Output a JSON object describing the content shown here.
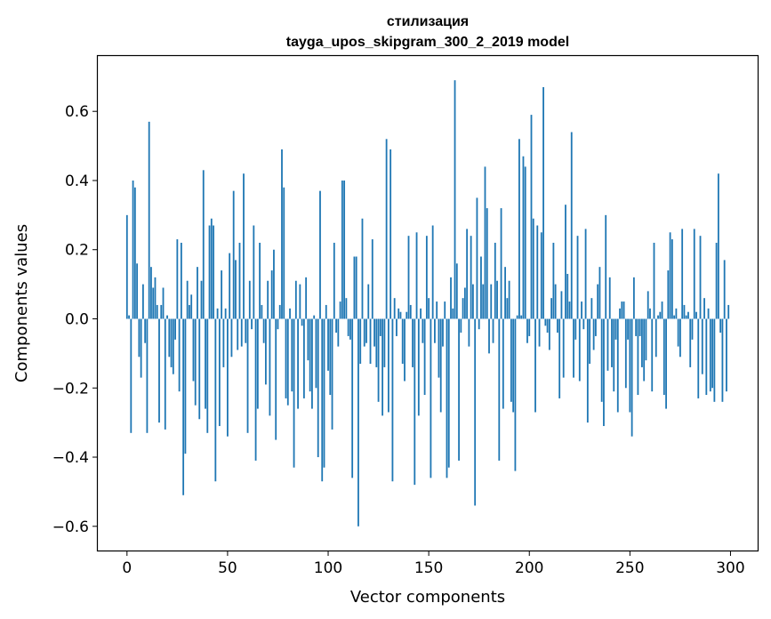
{
  "chart_data": {
    "type": "bar",
    "title_line1": "стилизация",
    "title_line2": "tayga_upos_skipgram_300_2_2019 model",
    "xlabel": "Vector components",
    "ylabel": "Components values",
    "xlim": [
      -14.5,
      313.5
    ],
    "ylim": [
      -0.67,
      0.76
    ],
    "xticks": [
      0,
      50,
      100,
      150,
      200,
      250,
      300
    ],
    "xtick_labels": [
      "0",
      "50",
      "100",
      "150",
      "200",
      "250",
      "300"
    ],
    "yticks": [
      -0.6,
      -0.4,
      -0.2,
      0.0,
      0.2,
      0.4,
      0.6
    ],
    "ytick_labels": [
      "−0.6",
      "−0.4",
      "−0.2",
      "0.0",
      "0.2",
      "0.4",
      "0.6"
    ],
    "bar_color": "#1f77b4",
    "values": [
      0.3,
      0.01,
      -0.33,
      0.4,
      0.38,
      0.16,
      -0.11,
      -0.17,
      0.1,
      -0.07,
      -0.33,
      0.57,
      0.15,
      0.09,
      0.12,
      0.04,
      -0.3,
      0.04,
      0.09,
      -0.32,
      0.01,
      -0.11,
      -0.14,
      -0.16,
      -0.06,
      0.23,
      -0.21,
      0.22,
      -0.51,
      -0.39,
      0.11,
      0.04,
      0.07,
      -0.18,
      -0.25,
      0.15,
      -0.29,
      0.11,
      0.43,
      -0.26,
      -0.33,
      0.27,
      0.29,
      0.27,
      -0.47,
      0.03,
      -0.31,
      0.14,
      -0.14,
      0.03,
      -0.34,
      0.19,
      -0.11,
      0.37,
      0.17,
      -0.09,
      0.22,
      -0.08,
      0.42,
      -0.07,
      -0.33,
      0.11,
      -0.03,
      0.27,
      -0.41,
      -0.26,
      0.22,
      0.04,
      -0.07,
      -0.19,
      0.11,
      -0.28,
      0.14,
      0.2,
      -0.35,
      -0.03,
      0.04,
      0.49,
      0.38,
      -0.23,
      -0.25,
      0.03,
      -0.21,
      -0.43,
      0.11,
      -0.26,
      0.1,
      -0.02,
      -0.23,
      0.12,
      -0.12,
      -0.21,
      -0.26,
      0.01,
      -0.2,
      -0.4,
      0.37,
      -0.47,
      -0.43,
      0.04,
      -0.15,
      -0.22,
      -0.32,
      0.22,
      -0.04,
      -0.08,
      0.05,
      0.4,
      0.4,
      0.06,
      -0.05,
      -0.06,
      -0.46,
      0.18,
      0.18,
      -0.6,
      -0.13,
      0.29,
      -0.08,
      -0.07,
      0.1,
      -0.13,
      0.23,
      -0.08,
      -0.14,
      -0.24,
      -0.05,
      -0.28,
      -0.14,
      0.52,
      -0.27,
      0.49,
      -0.47,
      0.06,
      -0.05,
      0.03,
      0.02,
      -0.13,
      -0.18,
      0.02,
      0.24,
      0.04,
      -0.14,
      -0.48,
      0.25,
      -0.28,
      0.03,
      -0.07,
      -0.22,
      0.24,
      0.06,
      -0.46,
      0.27,
      -0.07,
      0.05,
      -0.17,
      -0.27,
      -0.08,
      0.05,
      -0.46,
      -0.43,
      0.12,
      0.03,
      0.69,
      0.16,
      -0.41,
      -0.04,
      0.06,
      0.09,
      0.26,
      -0.08,
      0.24,
      0.1,
      -0.54,
      0.35,
      -0.03,
      0.18,
      0.1,
      0.44,
      0.32,
      -0.1,
      0.1,
      -0.07,
      0.22,
      0.11,
      -0.41,
      0.32,
      -0.26,
      0.15,
      0.06,
      0.11,
      -0.24,
      -0.27,
      -0.44,
      0.01,
      0.52,
      0.01,
      0.47,
      0.44,
      -0.07,
      -0.05,
      0.59,
      0.29,
      -0.27,
      0.27,
      -0.08,
      0.25,
      0.67,
      -0.02,
      -0.04,
      -0.09,
      0.06,
      0.22,
      0.1,
      -0.04,
      -0.23,
      0.08,
      -0.17,
      0.33,
      0.13,
      0.05,
      0.54,
      -0.17,
      -0.06,
      0.24,
      -0.18,
      0.05,
      -0.03,
      0.26,
      -0.3,
      -0.13,
      0.06,
      -0.09,
      -0.05,
      0.1,
      0.15,
      -0.24,
      -0.31,
      0.3,
      -0.15,
      0.12,
      -0.14,
      -0.21,
      -0.06,
      -0.27,
      0.03,
      0.05,
      0.05,
      -0.2,
      -0.06,
      -0.27,
      -0.34,
      0.12,
      -0.05,
      -0.22,
      -0.05,
      -0.14,
      -0.18,
      -0.12,
      0.08,
      0.03,
      -0.21,
      0.22,
      -0.11,
      0.01,
      0.02,
      0.05,
      -0.22,
      -0.26,
      0.14,
      0.25,
      0.23,
      0.01,
      0.03,
      -0.08,
      -0.11,
      0.26,
      0.04,
      0.01,
      0.02,
      -0.14,
      -0.06,
      0.26,
      0.02,
      -0.23,
      0.24,
      -0.16,
      0.06,
      -0.22,
      0.03,
      -0.21,
      -0.2,
      -0.24,
      0.22,
      0.42,
      -0.04,
      -0.24,
      0.17,
      -0.21,
      0.04
    ]
  }
}
